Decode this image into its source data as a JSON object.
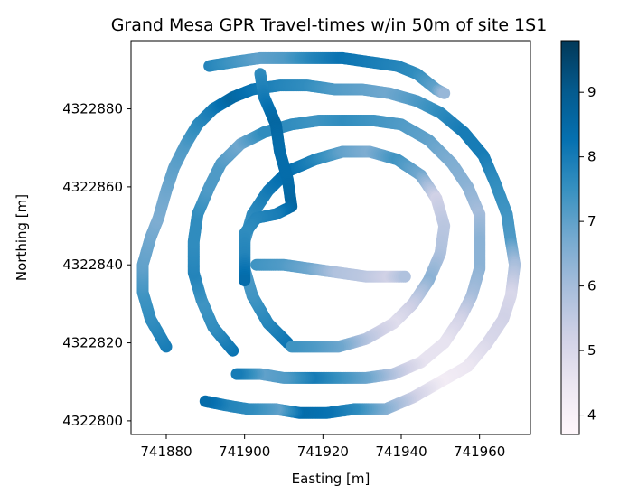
{
  "chart_data": {
    "type": "scatter",
    "title": "Grand Mesa GPR Travel-times w/in 50m of site 1S1",
    "xlabel": "Easting [m]",
    "ylabel": "Northing [m]",
    "xlim": [
      741871,
      741973
    ],
    "ylim": [
      4322796.5,
      4322897.5
    ],
    "xticks": [
      741880,
      741900,
      741920,
      741940,
      741960
    ],
    "yticks": [
      4322800,
      4322820,
      4322840,
      4322860,
      4322880
    ],
    "colorbar": {
      "colormap": "PuBu",
      "range": [
        3.7,
        9.8
      ],
      "ticks": [
        4,
        5,
        6,
        7,
        8,
        9
      ],
      "stops": [
        "#fff7fb",
        "#ece7f2",
        "#d0d1e6",
        "#a6bddb",
        "#74a9cf",
        "#3690c0",
        "#0570b0",
        "#045a8d",
        "#023858"
      ]
    },
    "grid": false,
    "series": [
      {
        "points": [
          [
            741891,
            4322891,
            7.8
          ],
          [
            741897,
            4322892,
            7.4
          ],
          [
            741904,
            4322893,
            7.0
          ],
          [
            741911,
            4322893,
            7.2
          ],
          [
            741918,
            4322893,
            7.8
          ],
          [
            741925,
            4322893,
            8.2
          ],
          [
            741932,
            4322892,
            8.0
          ],
          [
            741939,
            4322891,
            7.8
          ],
          [
            741944,
            4322889,
            7.6
          ],
          [
            741949,
            4322885,
            7.0
          ],
          [
            741951,
            4322884,
            6.2
          ]
        ]
      },
      {
        "points": [
          [
            741880,
            4322819,
            8.0
          ],
          [
            741876,
            4322826,
            7.6
          ],
          [
            741874,
            4322833,
            7.4
          ],
          [
            741874,
            4322840,
            7.0
          ],
          [
            741876,
            4322847,
            6.8
          ],
          [
            741878,
            4322852,
            6.6
          ],
          [
            741880,
            4322859,
            6.8
          ],
          [
            741882,
            4322865,
            7.0
          ],
          [
            741885,
            4322871,
            7.2
          ],
          [
            741888,
            4322876,
            7.6
          ],
          [
            741892,
            4322880,
            8.0
          ],
          [
            741897,
            4322883,
            8.6
          ],
          [
            741902,
            4322885,
            8.2
          ],
          [
            741909,
            4322886,
            7.8
          ],
          [
            741916,
            4322886,
            7.6
          ],
          [
            741923,
            4322885,
            7.2
          ],
          [
            741930,
            4322885,
            7.0
          ],
          [
            741937,
            4322884,
            6.8
          ],
          [
            741944,
            4322882,
            7.2
          ],
          [
            741950,
            4322879,
            7.6
          ],
          [
            741956,
            4322874,
            8.0
          ],
          [
            741961,
            4322868,
            8.0
          ],
          [
            741964,
            4322861,
            7.6
          ],
          [
            741967,
            4322853,
            7.4
          ],
          [
            741968,
            4322846,
            7.2
          ],
          [
            741969,
            4322840,
            6.0
          ],
          [
            741968,
            4322832,
            5.0
          ],
          [
            741966,
            4322826,
            5.2
          ],
          [
            741962,
            4322820,
            5.0
          ],
          [
            741957,
            4322814,
            4.5
          ],
          [
            741950,
            4322810,
            4.2
          ],
          [
            741943,
            4322806,
            5.2
          ],
          [
            741936,
            4322803,
            6.4
          ],
          [
            741928,
            4322803,
            7.6
          ],
          [
            741921,
            4322802,
            8.2
          ],
          [
            741914,
            4322802,
            8.4
          ],
          [
            741908,
            4322803,
            7.0
          ],
          [
            741901,
            4322803,
            7.6
          ],
          [
            741895,
            4322804,
            7.8
          ],
          [
            741890,
            4322805,
            8.4
          ]
        ]
      },
      {
        "points": [
          [
            741897,
            4322818,
            8.2
          ],
          [
            741892,
            4322824,
            7.6
          ],
          [
            741889,
            4322831,
            7.4
          ],
          [
            741887,
            4322838,
            7.8
          ],
          [
            741887,
            4322846,
            7.6
          ],
          [
            741888,
            4322853,
            7.6
          ],
          [
            741891,
            4322860,
            7.2
          ],
          [
            741894,
            4322866,
            7.2
          ],
          [
            741899,
            4322871,
            6.8
          ],
          [
            741905,
            4322874,
            7.6
          ],
          [
            741912,
            4322876,
            7.6
          ],
          [
            741919,
            4322877,
            7.4
          ],
          [
            741926,
            4322877,
            7.6
          ],
          [
            741933,
            4322877,
            7.4
          ],
          [
            741940,
            4322876,
            7.2
          ],
          [
            741947,
            4322872,
            7.0
          ],
          [
            741953,
            4322866,
            6.6
          ],
          [
            741957,
            4322860,
            6.4
          ],
          [
            741960,
            4322853,
            6.0
          ],
          [
            741960,
            4322846,
            6.4
          ],
          [
            741960,
            4322839,
            6.4
          ],
          [
            741958,
            4322832,
            6.0
          ],
          [
            741955,
            4322826,
            5.2
          ],
          [
            741951,
            4322820,
            4.6
          ],
          [
            741945,
            4322815,
            4.6
          ],
          [
            741938,
            4322812,
            5.6
          ],
          [
            741931,
            4322811,
            6.8
          ],
          [
            741924,
            4322811,
            7.4
          ],
          [
            741917,
            4322811,
            8.0
          ],
          [
            741910,
            4322811,
            7.2
          ],
          [
            741904,
            4322812,
            7.0
          ],
          [
            741898,
            4322812,
            8.0
          ]
        ]
      },
      {
        "points": [
          [
            741911,
            4322820,
            8.2
          ],
          [
            741906,
            4322825,
            7.8
          ],
          [
            741902,
            4322832,
            7.4
          ],
          [
            741900,
            4322839,
            7.2
          ],
          [
            741900,
            4322846,
            7.2
          ],
          [
            741902,
            4322853,
            7.6
          ],
          [
            741906,
            4322859,
            8.0
          ],
          [
            741911,
            4322864,
            8.4
          ],
          [
            741918,
            4322867,
            7.8
          ],
          [
            741925,
            4322869,
            7.0
          ],
          [
            741932,
            4322869,
            6.6
          ],
          [
            741939,
            4322867,
            7.4
          ],
          [
            741945,
            4322863,
            6.8
          ],
          [
            741949,
            4322857,
            5.2
          ],
          [
            741951,
            4322850,
            5.6
          ],
          [
            741950,
            4322843,
            5.8
          ],
          [
            741947,
            4322836,
            6.4
          ],
          [
            741943,
            4322830,
            5.4
          ],
          [
            741938,
            4322825,
            4.8
          ],
          [
            741931,
            4322821,
            5.6
          ],
          [
            741924,
            4322819,
            6.8
          ],
          [
            741917,
            4322819,
            7.2
          ],
          [
            741912,
            4322819,
            7.4
          ]
        ]
      },
      {
        "points": [
          [
            741904,
            4322889,
            7.6
          ],
          [
            741905,
            4322883,
            8.0
          ],
          [
            741908,
            4322876,
            8.6
          ],
          [
            741909,
            4322869,
            8.4
          ],
          [
            741911,
            4322862,
            8.4
          ],
          [
            741912,
            4322855,
            8.6
          ],
          [
            741908,
            4322853,
            8.0
          ],
          [
            741903,
            4322852,
            7.8
          ],
          [
            741900,
            4322848,
            7.6
          ],
          [
            741900,
            4322842,
            7.8
          ],
          [
            741900,
            4322836,
            8.4
          ]
        ]
      },
      {
        "points": [
          [
            741903,
            4322840,
            7.4
          ],
          [
            741910,
            4322840,
            7.2
          ],
          [
            741917,
            4322839,
            6.8
          ],
          [
            741924,
            4322838,
            5.8
          ],
          [
            741931,
            4322837,
            5.6
          ],
          [
            741937,
            4322837,
            5.2
          ],
          [
            741941,
            4322837,
            5.8
          ]
        ]
      }
    ]
  }
}
